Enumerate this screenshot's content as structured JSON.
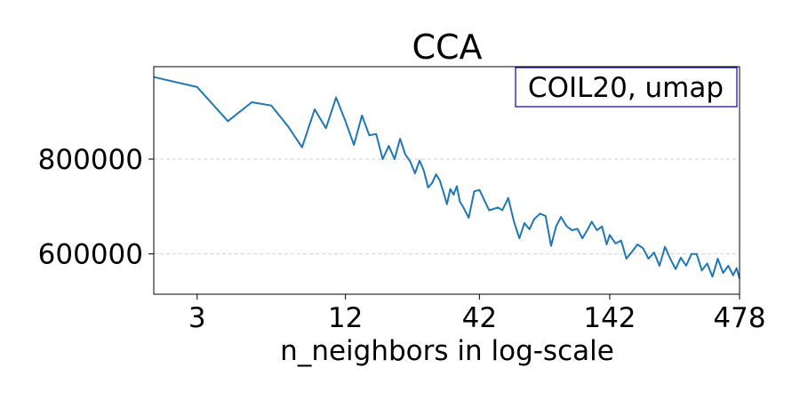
{
  "chart_data": {
    "type": "line",
    "title": "CCA",
    "xlabel": "n_neighbors in log-scale",
    "ylabel": "",
    "annotation": "COIL20, umap",
    "x_scale": "log",
    "xlim": [
      2,
      478
    ],
    "ylim": [
      515000,
      995000
    ],
    "x_ticks": [
      3,
      12,
      42,
      142,
      478
    ],
    "x_tick_labels": [
      "3",
      "12",
      "42",
      "142",
      "478"
    ],
    "y_ticks": [
      600000,
      800000
    ],
    "y_tick_labels": [
      "600000",
      "800000"
    ],
    "grid": "horizontal dashed",
    "colors": {
      "line": "#1f77b4",
      "annotation_border": "#0000cc",
      "grid": "#d3d3d3"
    },
    "series": [
      {
        "x": [
          2,
          3,
          4,
          5,
          6,
          7,
          8,
          9,
          10,
          11,
          12,
          13,
          14,
          15,
          16,
          17,
          18,
          19,
          20,
          21,
          22,
          23,
          24,
          25,
          26,
          27,
          28,
          29,
          30,
          31,
          32,
          33,
          34,
          35,
          36,
          38,
          40,
          42,
          44,
          46,
          48,
          50,
          52,
          55,
          58,
          61,
          64,
          67,
          70,
          74,
          78,
          82,
          86,
          90,
          95,
          100,
          105,
          110,
          115,
          120,
          126,
          132,
          138,
          142,
          150,
          158,
          166,
          175,
          184,
          194,
          204,
          215,
          226,
          238,
          250,
          263,
          276,
          290,
          305,
          320,
          336,
          353,
          371,
          390,
          410,
          430,
          450,
          465,
          478
        ],
        "y": [
          973000,
          952000,
          880000,
          920000,
          913000,
          870000,
          825000,
          905000,
          865000,
          930000,
          880000,
          830000,
          892000,
          850000,
          853000,
          800000,
          828000,
          800000,
          843000,
          810000,
          795000,
          770000,
          797000,
          775000,
          740000,
          750000,
          768000,
          755000,
          730000,
          705000,
          737000,
          725000,
          743000,
          710000,
          700000,
          676000,
          732000,
          735000,
          713000,
          692000,
          695000,
          698000,
          692000,
          718000,
          668000,
          633000,
          665000,
          652000,
          673000,
          685000,
          680000,
          617000,
          658000,
          678000,
          658000,
          650000,
          653000,
          633000,
          650000,
          668000,
          650000,
          658000,
          620000,
          640000,
          622000,
          628000,
          590000,
          605000,
          620000,
          612000,
          590000,
          603000,
          575000,
          615000,
          590000,
          568000,
          592000,
          575000,
          600000,
          600000,
          565000,
          580000,
          552000,
          590000,
          560000,
          575000,
          555000,
          570000,
          548000
        ]
      }
    ]
  }
}
